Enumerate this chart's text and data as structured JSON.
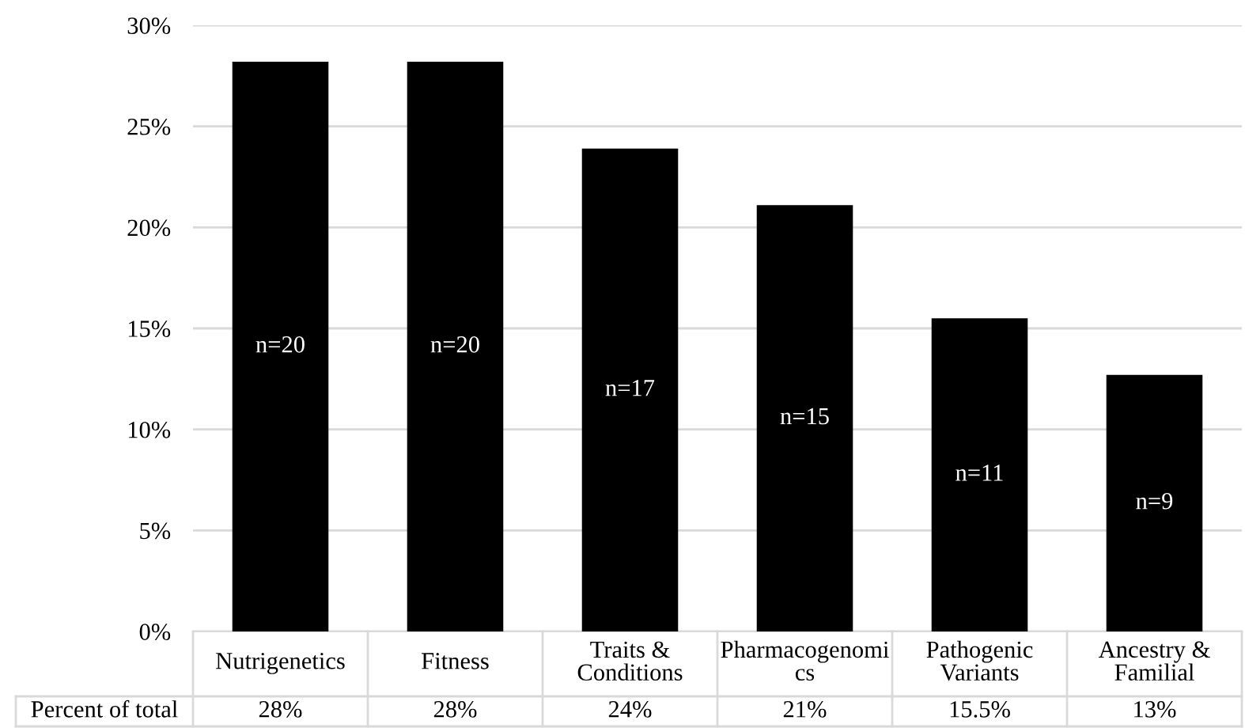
{
  "chart_data": {
    "type": "bar",
    "categories": [
      "Nutrigenetics",
      "Fitness",
      "Traits &\nConditions",
      "Pharmacogenomi\ncs",
      "Pathogenic\nVariants",
      "Ancestry &\nFamilial"
    ],
    "values": [
      28.2,
      28.2,
      23.9,
      21.1,
      15.5,
      12.7
    ],
    "value_labels": [
      "28%",
      "28%",
      "24%",
      "21%",
      "15.5%",
      "13%"
    ],
    "color": "#000000",
    "ylim": [
      0,
      30
    ],
    "yticks": [
      {
        "value": 0,
        "label": "0%"
      },
      {
        "value": 5,
        "label": "5%"
      },
      {
        "value": 10,
        "label": "10%"
      },
      {
        "value": 15,
        "label": "15%"
      },
      {
        "value": 20,
        "label": "20%"
      },
      {
        "value": 25,
        "label": "25%"
      },
      {
        "value": 30,
        "label": "30%"
      }
    ],
    "grid": "y",
    "annotations": [
      "Percent of total",
      "n=20",
      "n=20",
      "n=17",
      "n=15",
      "n=11",
      "n=9"
    ]
  }
}
